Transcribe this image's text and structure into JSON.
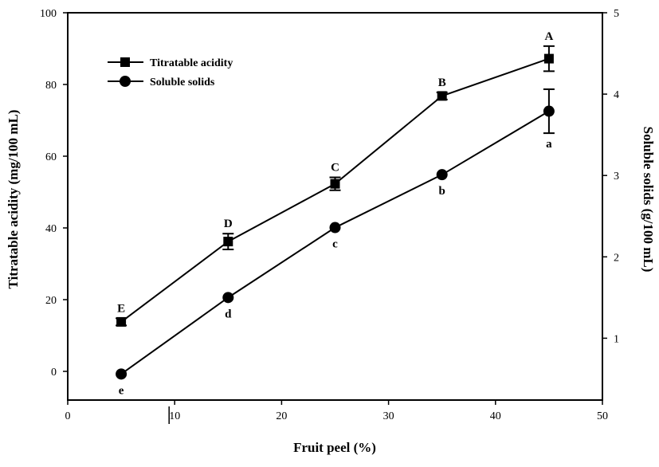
{
  "chart_data": {
    "type": "line",
    "xlabel": "Fruit peel (%)",
    "ylabel_left": "Titratable acidity (mg/100 mL)",
    "ylabel_right": "Soluble solids (g/100 mL)",
    "xlim": [
      0,
      50
    ],
    "ylim_left": [
      -8,
      100
    ],
    "ylim_right": [
      0.24,
      5
    ],
    "x_ticks": [
      0,
      10,
      20,
      30,
      40,
      50
    ],
    "y_left_ticks": [
      0,
      20,
      40,
      60,
      80,
      100
    ],
    "y_right_ticks": [
      1,
      2,
      3,
      4,
      5
    ],
    "grid": false,
    "legend_position": "top-left",
    "series": [
      {
        "name": "Titratable acidity",
        "axis": "left",
        "marker": "square",
        "x": [
          5,
          15,
          25,
          35,
          45
        ],
        "y": [
          13.8,
          36.2,
          52.3,
          76.8,
          87.2
        ],
        "error": [
          1.0,
          2.2,
          1.8,
          1.0,
          3.5
        ],
        "labels": [
          "E",
          "D",
          "C",
          "B",
          "A"
        ]
      },
      {
        "name": "Soluble solids",
        "axis": "right",
        "marker": "circle",
        "x": [
          5,
          15,
          25,
          35,
          45
        ],
        "y": [
          0.56,
          1.5,
          2.36,
          3.01,
          3.79
        ],
        "error": [
          0.0,
          0.0,
          0.0,
          0.0,
          0.27
        ],
        "labels": [
          "e",
          "d",
          "c",
          "b",
          "a"
        ]
      }
    ]
  }
}
